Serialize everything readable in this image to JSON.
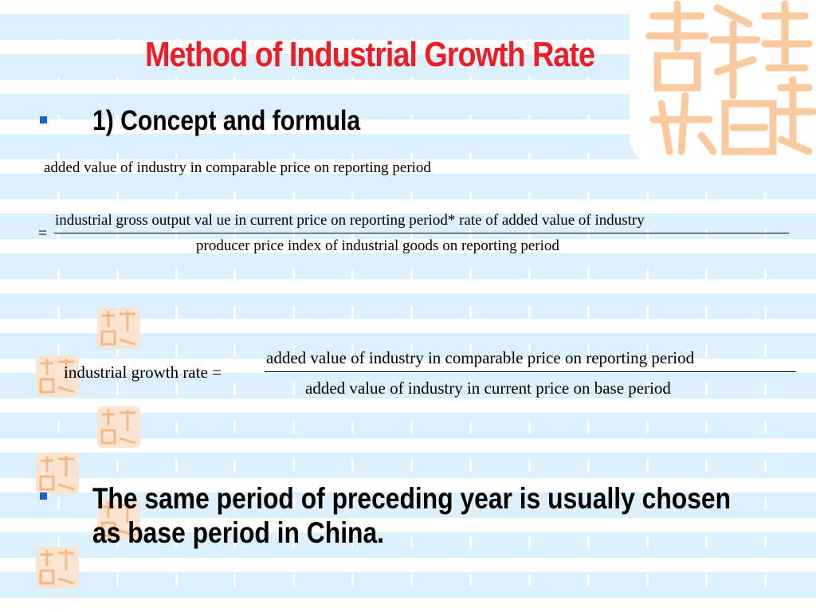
{
  "slide": {
    "title": "Method  of Industrial Growth Rate",
    "section": "1) Concept and formula",
    "formula1": {
      "lhs": "added value of industry in comparable price on reporting period",
      "equals": "=",
      "numerator": "industrial gross output val ue in current price on reporting period*  rate of added value of industry",
      "denominator": "producer price index of industrial goods on reporting period"
    },
    "formula2": {
      "label": "industrial growth rate =",
      "numerator": "added value of industry in comparable price on reporting period",
      "denominator": "added value of industry in current price on base period"
    },
    "note": "The same period of preceding year is usually chosen as base period in China."
  },
  "colors": {
    "title": "#ee1c24",
    "bullet": "#1a5fd6",
    "background": "#ddf0fd",
    "seal": "#f9c9a0"
  }
}
